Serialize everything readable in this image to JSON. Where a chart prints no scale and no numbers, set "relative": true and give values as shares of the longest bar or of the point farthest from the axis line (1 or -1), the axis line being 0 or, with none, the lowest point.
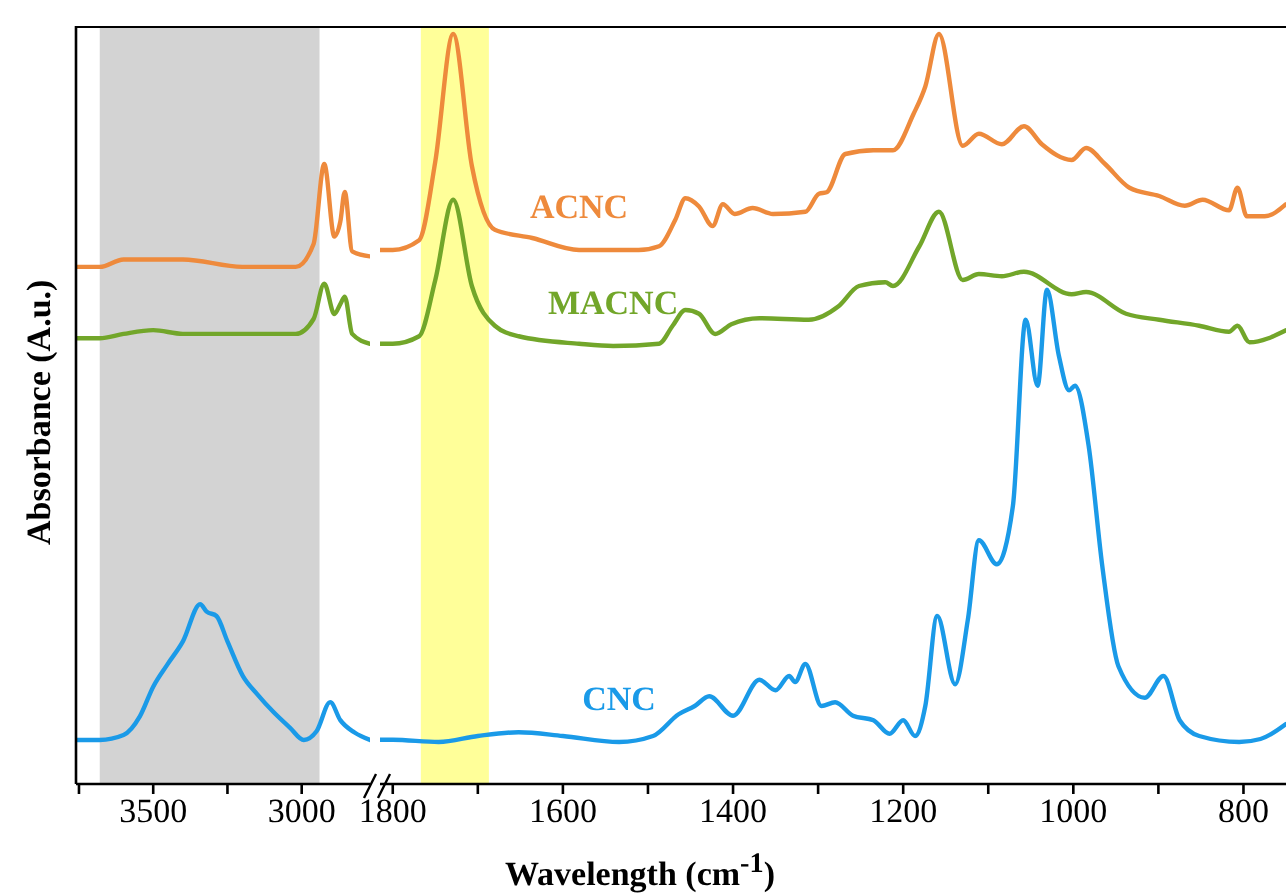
{
  "chart_data": [
    {
      "type": "line",
      "relative": true,
      "ylabel": "Absorbance (A.u.)",
      "xlim": [
        3760,
        2770
      ],
      "xticks": [
        {
          "value": 3750,
          "label": null
        },
        3500,
        {
          "value": 3250,
          "label": null
        },
        3000
      ],
      "marker": "none",
      "line_style": "solid",
      "bands": [
        {
          "axis": "x",
          "from": 3680,
          "to": 2940,
          "color": "#d3d3d3"
        }
      ],
      "series": [
        {
          "color": "#ee8a3c",
          "x": [
            3760,
            3680,
            3600,
            3500,
            3400,
            3200,
            3020,
            2960,
            2924,
            2890,
            2870,
            2855,
            2830,
            2770
          ],
          "values": [
            0.834,
            0.834,
            0.846,
            0.846,
            0.846,
            0.834,
            0.834,
            0.871,
            1.0,
            0.883,
            0.907,
            0.955,
            0.859,
            0.851
          ]
        },
        {
          "color": "#72a62a",
          "x": [
            3760,
            3680,
            3600,
            3500,
            3400,
            3200,
            3020,
            2960,
            2924,
            2890,
            2870,
            2855,
            2830,
            2770
          ],
          "values": [
            0.719,
            0.719,
            0.726,
            0.732,
            0.726,
            0.726,
            0.726,
            0.75,
            0.807,
            0.758,
            0.774,
            0.786,
            0.726,
            0.71
          ]
        },
        {
          "color": "#1a9ae8",
          "x": [
            3760,
            3680,
            3600,
            3545,
            3500,
            3452,
            3400,
            3342,
            3320,
            3287,
            3250,
            3198,
            3150,
            3095,
            3040,
            2993,
            2950,
            2904,
            2870,
            2822,
            2770
          ],
          "values": [
            0.071,
            0.071,
            0.079,
            0.109,
            0.157,
            0.193,
            0.23,
            0.29,
            0.278,
            0.271,
            0.23,
            0.174,
            0.145,
            0.116,
            0.091,
            0.071,
            0.085,
            0.132,
            0.103,
            0.083,
            0.071
          ]
        }
      ]
    },
    {
      "type": "line",
      "relative": true,
      "xlabel": "Wavelength (cm$^{-1}$)",
      "xlim": [
        1815,
        750
      ],
      "xticks": [
        1800,
        {
          "value": 1700,
          "label": null
        },
        1600,
        {
          "value": 1500,
          "label": null
        },
        1400,
        {
          "value": 1300,
          "label": null
        },
        1200,
        {
          "value": 1100,
          "label": null
        },
        1000,
        {
          "value": 900,
          "label": null
        },
        800
      ],
      "marker": "none",
      "line_style": "solid",
      "bands": [
        {
          "axis": "x",
          "from": 1767,
          "to": 1687,
          "color": "#ffff99"
        }
      ],
      "series": [
        {
          "name": "ACNC",
          "color": "#ee8a3c",
          "x": [
            1815,
            1800,
            1769,
            1750,
            1729,
            1707,
            1680,
            1636,
            1581,
            1511,
            1487,
            1468,
            1456,
            1440,
            1424,
            1412,
            1398,
            1377,
            1353,
            1315,
            1299,
            1290,
            1268,
            1235,
            1212,
            1188,
            1174,
            1158,
            1130,
            1111,
            1084,
            1058,
            1037,
            1002,
            985,
            963,
            934,
            899,
            869,
            848,
            817,
            807,
            796,
            775,
            750
          ],
          "values": [
            0.712,
            0.712,
            0.725,
            0.83,
            1.0,
            0.824,
            0.739,
            0.728,
            0.712,
            0.712,
            0.717,
            0.752,
            0.781,
            0.77,
            0.744,
            0.773,
            0.76,
            0.768,
            0.76,
            0.763,
            0.787,
            0.789,
            0.84,
            0.845,
            0.845,
            0.893,
            0.93,
            1.0,
            0.851,
            0.867,
            0.853,
            0.877,
            0.853,
            0.832,
            0.848,
            0.827,
            0.795,
            0.784,
            0.771,
            0.779,
            0.765,
            0.795,
            0.757,
            0.757,
            0.773
          ]
        },
        {
          "name": "MACNC",
          "color": "#72a62a",
          "x": [
            1815,
            1800,
            1769,
            1750,
            1729,
            1707,
            1680,
            1652,
            1581,
            1541,
            1487,
            1471,
            1456,
            1440,
            1421,
            1402,
            1369,
            1311,
            1276,
            1252,
            1221,
            1212,
            1181,
            1158,
            1130,
            1111,
            1084,
            1058,
            1002,
            985,
            938,
            899,
            852,
            817,
            807,
            793,
            750
          ],
          "values": [
            0.587,
            0.587,
            0.597,
            0.672,
            0.779,
            0.664,
            0.611,
            0.597,
            0.587,
            0.584,
            0.587,
            0.611,
            0.632,
            0.627,
            0.6,
            0.613,
            0.621,
            0.619,
            0.637,
            0.664,
            0.669,
            0.664,
            0.717,
            0.763,
            0.672,
            0.68,
            0.677,
            0.683,
            0.653,
            0.656,
            0.627,
            0.619,
            0.611,
            0.603,
            0.611,
            0.589,
            0.605
          ]
        },
        {
          "name": "CNC",
          "color": "#1a9ae8",
          "x": [
            1815,
            1800,
            1746,
            1700,
            1652,
            1600,
            1534,
            1494,
            1464,
            1445,
            1428,
            1400,
            1369,
            1350,
            1334,
            1327,
            1315,
            1296,
            1280,
            1259,
            1235,
            1216,
            1200,
            1186,
            1174,
            1160,
            1139,
            1124,
            1111,
            1090,
            1071,
            1056,
            1042,
            1031,
            1017,
            1005,
            998,
            982,
            966,
            947,
            916,
            894,
            875,
            852,
            805,
            780,
            750
          ],
          "values": [
            0.059,
            0.059,
            0.056,
            0.064,
            0.069,
            0.064,
            0.056,
            0.064,
            0.093,
            0.104,
            0.117,
            0.091,
            0.139,
            0.125,
            0.144,
            0.136,
            0.16,
            0.104,
            0.109,
            0.091,
            0.085,
            0.067,
            0.085,
            0.064,
            0.104,
            0.224,
            0.133,
            0.219,
            0.325,
            0.293,
            0.371,
            0.619,
            0.531,
            0.659,
            0.571,
            0.525,
            0.531,
            0.451,
            0.291,
            0.157,
            0.115,
            0.144,
            0.085,
            0.064,
            0.056,
            0.06,
            0.08
          ]
        }
      ]
    }
  ]
}
